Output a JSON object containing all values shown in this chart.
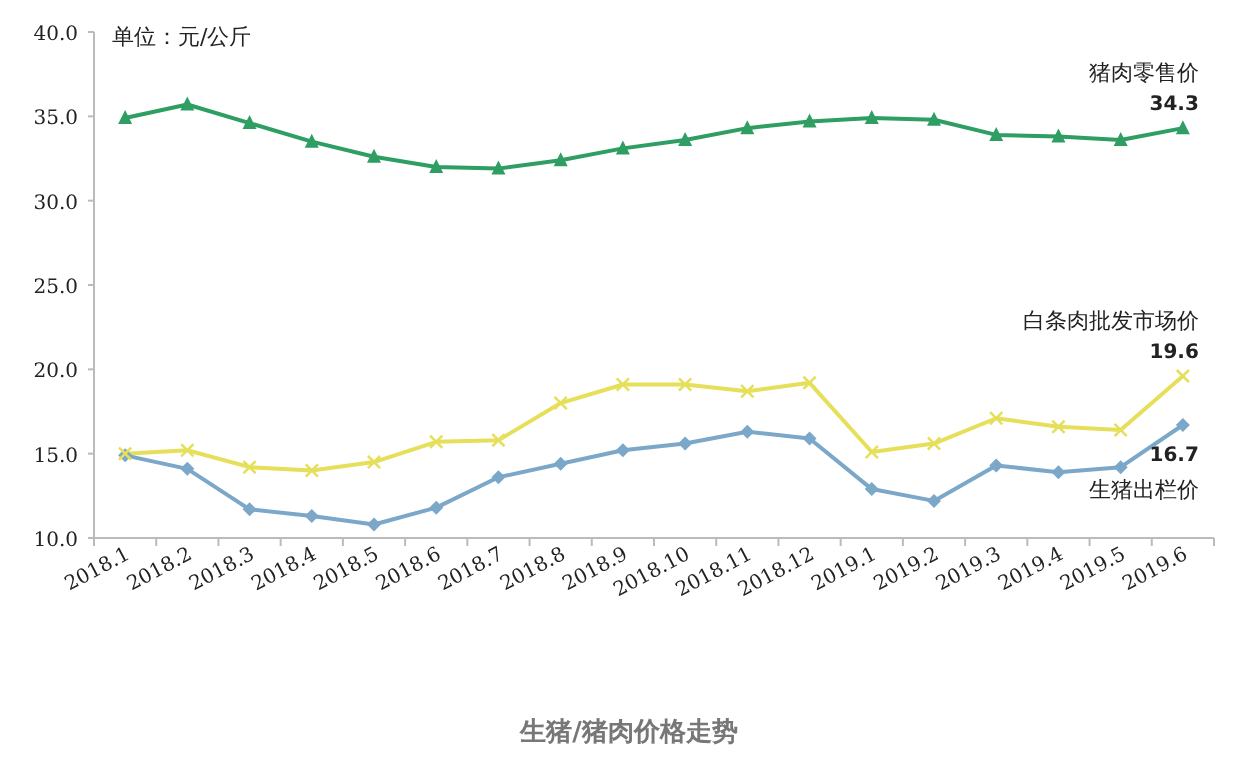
{
  "chart_data": {
    "type": "line",
    "title": "生猪/猪肉价格走势",
    "annotations": [
      "单位：元/公斤"
    ],
    "categories": [
      "2018.1",
      "2018.2",
      "2018.3",
      "2018.4",
      "2018.5",
      "2018.6",
      "2018.7",
      "2018.8",
      "2018.9",
      "2018.10",
      "2018.11",
      "2018.12",
      "2019.1",
      "2019.2",
      "2019.3",
      "2019.4",
      "2019.5",
      "2019.6"
    ],
    "ylim": [
      10,
      40
    ],
    "yticks": [
      {
        "value": 10,
        "label": "10.0"
      },
      {
        "value": 15,
        "label": "15.0"
      },
      {
        "value": 20,
        "label": "20.0"
      },
      {
        "value": 25,
        "label": "25.0"
      },
      {
        "value": 30,
        "label": "30.0"
      },
      {
        "value": 35,
        "label": "35.0"
      },
      {
        "value": 40,
        "label": "40.0"
      }
    ],
    "grid": false,
    "series": [
      {
        "name": "猪肉零售价",
        "color": "#2e9e63",
        "marker": "triangle",
        "values": [
          34.9,
          35.7,
          34.6,
          33.5,
          32.6,
          32.0,
          31.9,
          32.4,
          33.1,
          33.6,
          34.3,
          34.7,
          34.9,
          34.8,
          33.9,
          33.8,
          33.6,
          34.3
        ],
        "value_labels": [
          null,
          null,
          null,
          null,
          null,
          null,
          null,
          null,
          null,
          null,
          null,
          null,
          null,
          null,
          null,
          null,
          null,
          "34.3"
        ]
      },
      {
        "name": "白条肉批发市场价",
        "color": "#e6df5a",
        "marker": "cross",
        "values": [
          15.0,
          15.2,
          14.2,
          14.0,
          14.5,
          15.7,
          15.8,
          18.0,
          19.1,
          19.1,
          18.7,
          19.2,
          15.1,
          15.6,
          17.1,
          16.6,
          16.4,
          19.6
        ],
        "value_labels": [
          null,
          null,
          null,
          null,
          null,
          null,
          null,
          null,
          null,
          null,
          null,
          null,
          null,
          null,
          null,
          null,
          null,
          "19.6"
        ]
      },
      {
        "name": "生猪出栏价",
        "color": "#7ba7c9",
        "marker": "diamond",
        "values": [
          14.9,
          14.1,
          11.7,
          11.3,
          10.8,
          11.8,
          13.6,
          14.4,
          15.2,
          15.6,
          16.3,
          15.9,
          12.9,
          12.2,
          14.3,
          13.9,
          14.2,
          16.7
        ],
        "value_labels": [
          null,
          null,
          null,
          null,
          null,
          null,
          null,
          null,
          null,
          null,
          null,
          null,
          null,
          null,
          null,
          null,
          null,
          "16.7"
        ]
      }
    ]
  }
}
